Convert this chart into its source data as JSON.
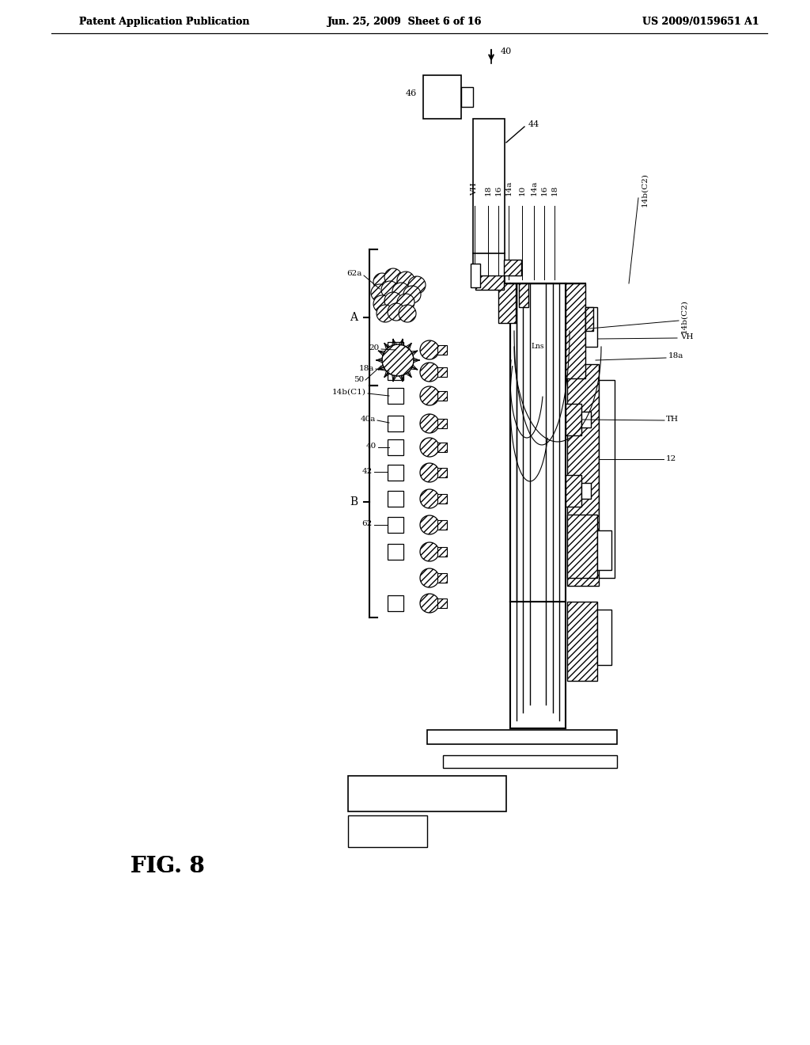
{
  "header_left": "Patent Application Publication",
  "header_center": "Jun. 25, 2009  Sheet 6 of 16",
  "header_right": "US 2009/0159651 A1",
  "fig_label": "FIG. 8",
  "bg_color": "#ffffff"
}
